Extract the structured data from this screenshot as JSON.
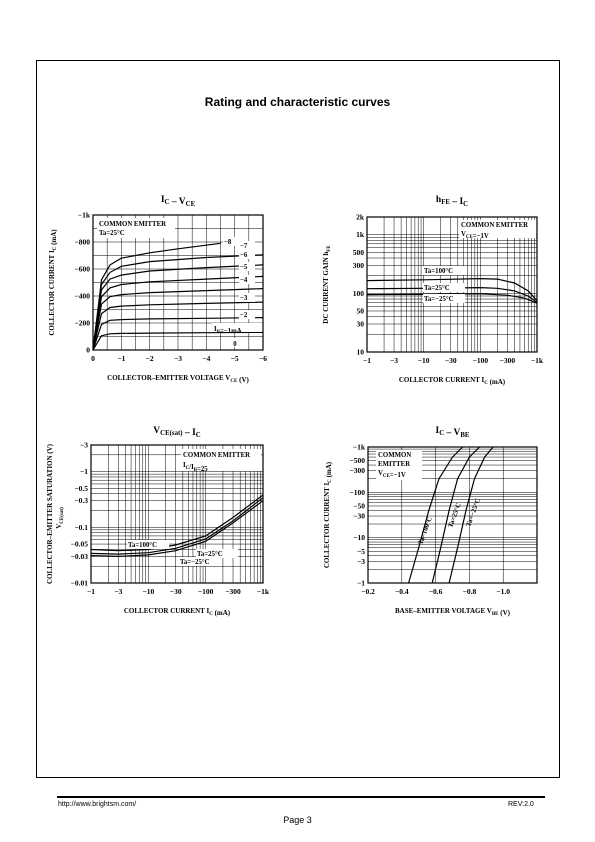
{
  "heading": "Rating and characteristic curves",
  "footer": {
    "url": "http://www.brightsm.com/",
    "rev": "REV:2.0",
    "page": "Page 3"
  },
  "chart_data": [
    {
      "type": "line",
      "title": "I_C – V_CE",
      "title_main": "I",
      "title_sub": "C",
      "title_rest": " – V",
      "title_sub2": "CE",
      "xlabel": "COLLECTOR–EMITTER VOLTAGE V",
      "xlabel_sub": "CE",
      "xlabel_unit": "(V)",
      "ylabel": "COLLECTOR CURRENT I",
      "ylabel_sub": "C",
      "ylabel_unit": "(mA)",
      "x_scale": "linear",
      "y_scale": "linear",
      "xlim": [
        0,
        -6
      ],
      "ylim": [
        0,
        -1000
      ],
      "x_ticks": [
        0,
        -1,
        -2,
        -3,
        -4,
        -5,
        -6
      ],
      "x_tick_labels": [
        "0",
        "−1",
        "−2",
        "−3",
        "−4",
        "−5",
        "−6"
      ],
      "y_ticks": [
        0,
        -200,
        -400,
        -600,
        -800,
        -1000
      ],
      "y_tick_labels": [
        "0",
        "−200",
        "−400",
        "−600",
        "−800",
        "−1k"
      ],
      "grid_x": [
        0,
        -0.5,
        -1,
        -1.5,
        -2,
        -2.5,
        -3,
        -3.5,
        -4,
        -4.5,
        -5,
        -5.5,
        -6
      ],
      "grid_y": [
        0,
        -100,
        -200,
        -300,
        -400,
        -500,
        -600,
        -700,
        -800,
        -900,
        -1000
      ],
      "annotations": [
        "COMMON EMITTER",
        "Ta=25°C"
      ],
      "series": [
        {
          "name": "I_B=−1mA",
          "label": "I",
          "label_sub": "B",
          "label_rest": "=−1mA",
          "points": [
            [
              0,
              0
            ],
            [
              -0.3,
              -105
            ],
            [
              -0.6,
              -120
            ],
            [
              -1,
              -123
            ],
            [
              -2,
              -125
            ],
            [
              -4,
              -128
            ],
            [
              -6,
              -130
            ]
          ]
        },
        {
          "name": "−2",
          "label": "−2",
          "points": [
            [
              0,
              0
            ],
            [
              -0.3,
              -190
            ],
            [
              -0.6,
              -220
            ],
            [
              -1,
              -225
            ],
            [
              -2,
              -230
            ],
            [
              -4,
              -235
            ],
            [
              -6,
              -240
            ]
          ]
        },
        {
          "name": "−3",
          "label": "−3",
          "points": [
            [
              0,
              0
            ],
            [
              -0.3,
              -270
            ],
            [
              -0.6,
              -315
            ],
            [
              -1,
              -325
            ],
            [
              -2,
              -335
            ],
            [
              -4,
              -345
            ],
            [
              -6,
              -355
            ]
          ]
        },
        {
          "name": "−4",
          "label": "−4",
          "points": [
            [
              0,
              0
            ],
            [
              -0.3,
              -340
            ],
            [
              -0.6,
              -395
            ],
            [
              -1,
              -410
            ],
            [
              -2,
              -425
            ],
            [
              -4,
              -440
            ],
            [
              -6,
              -455
            ]
          ]
        },
        {
          "name": "−5",
          "label": "−5",
          "points": [
            [
              0,
              0
            ],
            [
              -0.3,
              -395
            ],
            [
              -0.6,
              -460
            ],
            [
              -1,
              -485
            ],
            [
              -2,
              -505
            ],
            [
              -4,
              -525
            ],
            [
              -6,
              -545
            ]
          ]
        },
        {
          "name": "−6",
          "label": "−6",
          "points": [
            [
              0,
              0
            ],
            [
              -0.3,
              -445
            ],
            [
              -0.6,
              -525
            ],
            [
              -1,
              -555
            ],
            [
              -2,
              -585
            ],
            [
              -4,
              -610
            ],
            [
              -6,
              -630
            ]
          ]
        },
        {
          "name": "−7",
          "label": "−7",
          "points": [
            [
              0,
              0
            ],
            [
              -0.3,
              -485
            ],
            [
              -0.6,
              -575
            ],
            [
              -1,
              -620
            ],
            [
              -2,
              -655
            ],
            [
              -4,
              -685
            ],
            [
              -6,
              -705
            ]
          ]
        },
        {
          "name": "−8",
          "label": "−8",
          "points": [
            [
              0,
              0
            ],
            [
              -0.3,
              -520
            ],
            [
              -0.6,
              -630
            ],
            [
              -1,
              -680
            ],
            [
              -2,
              -720
            ],
            [
              -3,
              -750
            ],
            [
              -4.5,
              -790
            ]
          ]
        }
      ]
    },
    {
      "type": "line",
      "title_main": "h",
      "title_sub": "FE",
      "title_rest": " – I",
      "title_sub2": "C",
      "xlabel": "COLLECTOR CURRENT I",
      "xlabel_sub": "C",
      "xlabel_unit": "(mA)",
      "ylabel": "DC CURRENT GAIN h",
      "ylabel_sub": "FE",
      "ylabel_unit": "",
      "x_scale": "log",
      "y_scale": "log",
      "xlim": [
        -1,
        -1000
      ],
      "ylim": [
        10,
        2000
      ],
      "x_ticks": [
        -1,
        -3,
        -10,
        -30,
        -100,
        -300,
        -1000
      ],
      "x_tick_labels": [
        "−1",
        "−3",
        "−10",
        "−30",
        "−100",
        "−300",
        "−1k"
      ],
      "y_ticks": [
        10,
        30,
        50,
        100,
        300,
        500,
        1000,
        2000
      ],
      "y_tick_labels": [
        "10",
        "30",
        "50",
        "100",
        "300",
        "500",
        "1k",
        "2k"
      ],
      "annotations": [
        "COMMON EMITTER",
        "V_CE=−1V"
      ],
      "series": [
        {
          "name": "Ta=100°C",
          "label": "Ta=100°C",
          "points": [
            [
              -1,
              165
            ],
            [
              -10,
              170
            ],
            [
              -100,
              178
            ],
            [
              -200,
              175
            ],
            [
              -400,
              150
            ],
            [
              -700,
              110
            ],
            [
              -1000,
              75
            ]
          ]
        },
        {
          "name": "Ta=25°C",
          "label": "Ta=25°C",
          "points": [
            [
              -1,
              120
            ],
            [
              -10,
              122
            ],
            [
              -100,
              125
            ],
            [
              -200,
              122
            ],
            [
              -400,
              110
            ],
            [
              -700,
              90
            ],
            [
              -1000,
              70
            ]
          ]
        },
        {
          "name": "Ta=−25°C",
          "label": "Ta=−25°C",
          "points": [
            [
              -1,
              95
            ],
            [
              -10,
              96
            ],
            [
              -100,
              98
            ],
            [
              -300,
              93
            ],
            [
              -600,
              83
            ],
            [
              -1000,
              68
            ]
          ]
        }
      ]
    },
    {
      "type": "line",
      "title_main": "V",
      "title_sub": "CE(sat)",
      "title_rest": " – I",
      "title_sub2": "C",
      "xlabel": "COLLECTOR CURRENT I",
      "xlabel_sub": "C",
      "xlabel_unit": "(mA)",
      "ylabel": "COLLECTOR–EMITTER SATURATION",
      "ylabel2": "V",
      "ylabel2_sub": "CE(sat)",
      "ylabel_unit": "(V)",
      "x_scale": "log",
      "y_scale": "log",
      "xlim": [
        -1,
        -1000
      ],
      "ylim": [
        -0.01,
        -3
      ],
      "x_ticks": [
        -1,
        -3,
        -10,
        -30,
        -100,
        -300,
        -1000
      ],
      "x_tick_labels": [
        "−1",
        "−3",
        "−10",
        "−30",
        "−100",
        "−300",
        "−1k"
      ],
      "y_ticks": [
        -0.01,
        -0.03,
        -0.05,
        -0.1,
        -0.3,
        -0.5,
        -1,
        -3
      ],
      "y_tick_labels": [
        "−0.01",
        "−0.03",
        "−0.05",
        "−0.1",
        "−0.3",
        "−0.5",
        "−1",
        "−3"
      ],
      "annotations": [
        "COMMON EMITTER",
        "I_C/I_B=25"
      ],
      "series": [
        {
          "name": "Ta=100°C",
          "label": "Ta=100°C",
          "points": [
            [
              -1,
              -0.04
            ],
            [
              -3,
              -0.038
            ],
            [
              -10,
              -0.04
            ],
            [
              -30,
              -0.048
            ],
            [
              -100,
              -0.07
            ],
            [
              -300,
              -0.15
            ],
            [
              -1000,
              -0.38
            ]
          ]
        },
        {
          "name": "Ta=25°C",
          "label": "Ta=25°C",
          "points": [
            [
              -1,
              -0.034
            ],
            [
              -3,
              -0.033
            ],
            [
              -10,
              -0.035
            ],
            [
              -30,
              -0.042
            ],
            [
              -100,
              -0.062
            ],
            [
              -300,
              -0.13
            ],
            [
              -1000,
              -0.34
            ]
          ]
        },
        {
          "name": "Ta=−25°C",
          "label": "Ta=−25°C",
          "points": [
            [
              -1,
              -0.031
            ],
            [
              -3,
              -0.03
            ],
            [
              -10,
              -0.032
            ],
            [
              -30,
              -0.038
            ],
            [
              -100,
              -0.056
            ],
            [
              -300,
              -0.12
            ],
            [
              -1000,
              -0.3
            ]
          ]
        }
      ]
    },
    {
      "type": "line",
      "title_main": "I",
      "title_sub": "C",
      "title_rest": " – V",
      "title_sub2": "BE",
      "xlabel": "BASE–EMITTER VOLTAGE V",
      "xlabel_sub": "BE",
      "xlabel_unit": "(V)",
      "ylabel": "COLLECTOR CURRENT I",
      "ylabel_sub": "C",
      "ylabel_unit": "(mA)",
      "x_scale": "linear",
      "y_scale": "log",
      "xlim": [
        -0.2,
        -1.2
      ],
      "ylim": [
        -1,
        -1000
      ],
      "x_ticks": [
        -0.2,
        -0.4,
        -0.6,
        -0.8,
        -1.0
      ],
      "x_tick_labels": [
        "−0.2",
        "−0.4",
        "−0.6",
        "−0.8",
        "−1.0"
      ],
      "y_ticks": [
        -1,
        -3,
        -5,
        -10,
        -30,
        -50,
        -100,
        -300,
        -500,
        -1000
      ],
      "y_tick_labels": [
        "−1",
        "−3",
        "−5",
        "−10",
        "−30",
        "−50",
        "−100",
        "−300",
        "−500",
        "−1k"
      ],
      "annotations": [
        "COMMON",
        "EMITTER",
        "V_CE=−1V"
      ],
      "series": [
        {
          "name": "Ta=100°C",
          "label": "Ta=100°C",
          "points": [
            [
              -0.44,
              -1
            ],
            [
              -0.5,
              -6
            ],
            [
              -0.56,
              -40
            ],
            [
              -0.62,
              -200
            ],
            [
              -0.7,
              -600
            ],
            [
              -0.76,
              -1000
            ]
          ]
        },
        {
          "name": "Ta=25°C",
          "label": "Ta=25°C",
          "points": [
            [
              -0.58,
              -1
            ],
            [
              -0.63,
              -6
            ],
            [
              -0.68,
              -40
            ],
            [
              -0.73,
              -200
            ],
            [
              -0.8,
              -600
            ],
            [
              -0.86,
              -1000
            ]
          ]
        },
        {
          "name": "Ta=−25°C",
          "label": "Ta=−25°C",
          "points": [
            [
              -0.68,
              -1
            ],
            [
              -0.73,
              -6
            ],
            [
              -0.78,
              -40
            ],
            [
              -0.83,
              -200
            ],
            [
              -0.89,
              -600
            ],
            [
              -0.94,
              -1000
            ]
          ]
        }
      ]
    }
  ]
}
